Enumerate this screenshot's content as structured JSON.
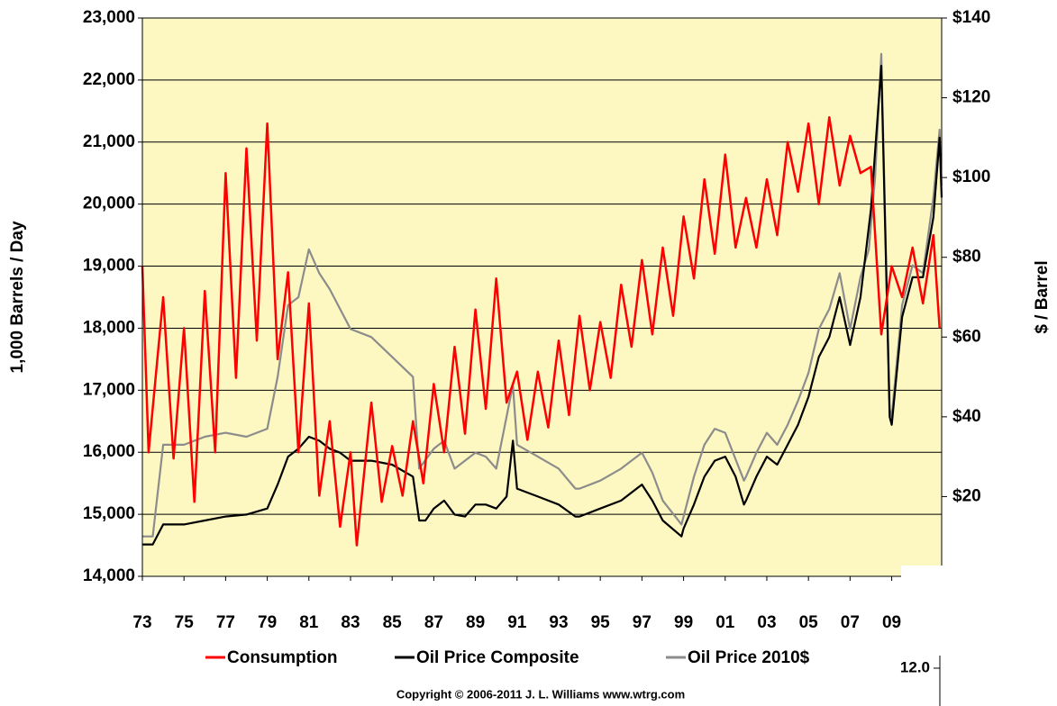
{
  "chart_data": {
    "type": "line",
    "y_label": "1,000 Barrels / Day",
    "y2_label": "$ / Barrel",
    "copyright": "Copyright © 2006-2011 J. L. Williams www.wtrg.com",
    "xlim": [
      1973,
      2011.4
    ],
    "xticks": [
      {
        "value": 1973,
        "label": "73"
      },
      {
        "value": 1975,
        "label": "75"
      },
      {
        "value": 1977,
        "label": "77"
      },
      {
        "value": 1979,
        "label": "79"
      },
      {
        "value": 1981,
        "label": "81"
      },
      {
        "value": 1983,
        "label": "83"
      },
      {
        "value": 1985,
        "label": "85"
      },
      {
        "value": 1987,
        "label": "87"
      },
      {
        "value": 1989,
        "label": "89"
      },
      {
        "value": 1991,
        "label": "91"
      },
      {
        "value": 1993,
        "label": "93"
      },
      {
        "value": 1995,
        "label": "95"
      },
      {
        "value": 1997,
        "label": "97"
      },
      {
        "value": 1999,
        "label": "99"
      },
      {
        "value": 2001,
        "label": "01"
      },
      {
        "value": 2003,
        "label": "03"
      },
      {
        "value": 2005,
        "label": "05"
      },
      {
        "value": 2007,
        "label": "07"
      },
      {
        "value": 2009,
        "label": "09"
      }
    ],
    "ylim": [
      14000,
      23000
    ],
    "yticks": [
      {
        "value": 14000,
        "label": "14,000"
      },
      {
        "value": 15000,
        "label": "15,000"
      },
      {
        "value": 16000,
        "label": "16,000"
      },
      {
        "value": 17000,
        "label": "17,000"
      },
      {
        "value": 18000,
        "label": "18,000"
      },
      {
        "value": 19000,
        "label": "19,000"
      },
      {
        "value": 20000,
        "label": "20,000"
      },
      {
        "value": 21000,
        "label": "21,000"
      },
      {
        "value": 22000,
        "label": "22,000"
      },
      {
        "value": 23000,
        "label": "23,000"
      }
    ],
    "y2lim": [
      0,
      140
    ],
    "y2ticks": [
      {
        "value": 20,
        "label": "$20"
      },
      {
        "value": 40,
        "label": "$40"
      },
      {
        "value": 60,
        "label": "$60"
      },
      {
        "value": 80,
        "label": "$80"
      },
      {
        "value": 100,
        "label": "$100"
      },
      {
        "value": 120,
        "label": "$120"
      },
      {
        "value": 140,
        "label": "$140"
      }
    ],
    "grid": true,
    "background": "#fdf8c2",
    "series": [
      {
        "name": "Consumption",
        "color": "#ff0000",
        "x": [
          1973,
          1973.3,
          1974,
          1974.5,
          1975,
          1975.5,
          1976,
          1976.5,
          1977,
          1977.5,
          1978,
          1978.5,
          1979,
          1979.5,
          1980,
          1980.5,
          1981,
          1981.5,
          1982,
          1982.5,
          1983,
          1983.3,
          1984,
          1984.5,
          1985,
          1985.5,
          1986,
          1986.5,
          1987,
          1987.5,
          1988,
          1988.5,
          1989,
          1989.5,
          1990,
          1990.5,
          1991,
          1991.5,
          1992,
          1992.5,
          1993,
          1993.5,
          1994,
          1994.5,
          1995,
          1995.5,
          1996,
          1996.5,
          1997,
          1997.5,
          1998,
          1998.5,
          1999,
          1999.5,
          2000,
          2000.5,
          2001,
          2001.5,
          2002,
          2002.5,
          2003,
          2003.5,
          2004,
          2004.5,
          2005,
          2005.5,
          2006,
          2006.5,
          2007,
          2007.5,
          2008,
          2008.5,
          2009,
          2009.5,
          2010,
          2010.5,
          2011,
          2011.3
        ],
        "values": [
          19000,
          16000,
          18500,
          15900,
          18000,
          15200,
          18600,
          16000,
          20500,
          17200,
          20900,
          17800,
          21300,
          17500,
          18900,
          16000,
          18400,
          15300,
          16500,
          14800,
          16000,
          14500,
          16800,
          15200,
          16100,
          15300,
          16500,
          15500,
          17100,
          16000,
          17700,
          16300,
          18300,
          16700,
          18800,
          16800,
          17300,
          16200,
          17300,
          16400,
          17800,
          16600,
          18200,
          17000,
          18100,
          17200,
          18700,
          17700,
          19100,
          17900,
          19300,
          18200,
          19800,
          18800,
          20400,
          19200,
          20800,
          19300,
          20100,
          19300,
          20400,
          19500,
          21000,
          20200,
          21300,
          20000,
          21400,
          20300,
          21100,
          20500,
          20600,
          17900,
          19000,
          18500,
          19300,
          18400,
          19500,
          18000
        ]
      },
      {
        "name": "Oil Price Composite",
        "color": "#000000",
        "axis": "y2",
        "x": [
          1973,
          1973.5,
          1974,
          1975,
          1976,
          1977,
          1978,
          1979,
          1979.5,
          1980,
          1980.5,
          1981,
          1981.5,
          1982,
          1982.5,
          1983,
          1984,
          1985,
          1986,
          1986.3,
          1986.6,
          1987,
          1987.5,
          1988,
          1988.5,
          1989,
          1989.5,
          1990,
          1990.5,
          1990.8,
          1991,
          1991.5,
          1992,
          1993,
          1993.8,
          1994,
          1995,
          1996,
          1996.5,
          1997,
          1997.5,
          1998,
          1998.9,
          1999,
          1999.5,
          2000,
          2000.5,
          2001,
          2001.5,
          2001.9,
          2002,
          2002.5,
          2003,
          2003.5,
          2004,
          2004.5,
          2005,
          2005.5,
          2006,
          2006.5,
          2007,
          2007.5,
          2008,
          2008.5,
          2008.9,
          2009,
          2009.5,
          2010,
          2010.5,
          2011,
          2011.3,
          2011.4
        ],
        "values": [
          8,
          8,
          13,
          13,
          14,
          15,
          15.5,
          17,
          23,
          30,
          32,
          35,
          34,
          32,
          31,
          29,
          29,
          28,
          25,
          14,
          14,
          17,
          19,
          15.5,
          15,
          18,
          18,
          17,
          20,
          34,
          22,
          21,
          20,
          18,
          15,
          15,
          17,
          19,
          21,
          23,
          19,
          14,
          10,
          12,
          18,
          25,
          29,
          30,
          25,
          18,
          19,
          25,
          30,
          28,
          33,
          38,
          45,
          55,
          60,
          70,
          58,
          70,
          92,
          128,
          40,
          38,
          65,
          75,
          75,
          90,
          110,
          95
        ]
      },
      {
        "name": "Oil Price 2010$",
        "color": "#8c8c8c",
        "axis": "y2",
        "x": [
          1973,
          1973.5,
          1974,
          1975,
          1976,
          1977,
          1978,
          1979,
          1979.5,
          1980,
          1980.5,
          1981,
          1981.5,
          1982,
          1983,
          1984,
          1985,
          1986,
          1986.3,
          1987,
          1987.5,
          1988,
          1989,
          1989.5,
          1990,
          1990.8,
          1991,
          1992,
          1993,
          1993.8,
          1994,
          1995,
          1996,
          1997,
          1997.5,
          1998,
          1998.9,
          1999,
          1999.5,
          2000,
          2000.5,
          2001,
          2001.9,
          2002,
          2002.5,
          2003,
          2003.5,
          2004,
          2004.5,
          2005,
          2005.5,
          2006,
          2006.5,
          2007,
          2007.5,
          2007.9,
          2008.2,
          2008.5,
          2008.9,
          2009,
          2009.5,
          2010,
          2010.5,
          2011,
          2011.3,
          2011.4
        ],
        "values": [
          10,
          10,
          33,
          33,
          35,
          36,
          35,
          37,
          50,
          68,
          70,
          82,
          76,
          72,
          62,
          60,
          55,
          50,
          27,
          32,
          34,
          27,
          31,
          30,
          27,
          48,
          33,
          30,
          27,
          22,
          22,
          24,
          27,
          31,
          26,
          19,
          13,
          15,
          25,
          33,
          37,
          36,
          24,
          25,
          31,
          36,
          33,
          38,
          44,
          51,
          62,
          67,
          76,
          62,
          75,
          82,
          100,
          131,
          42,
          40,
          68,
          78,
          76,
          95,
          112,
          98
        ]
      }
    ]
  },
  "inset": {
    "label": "12.0"
  }
}
